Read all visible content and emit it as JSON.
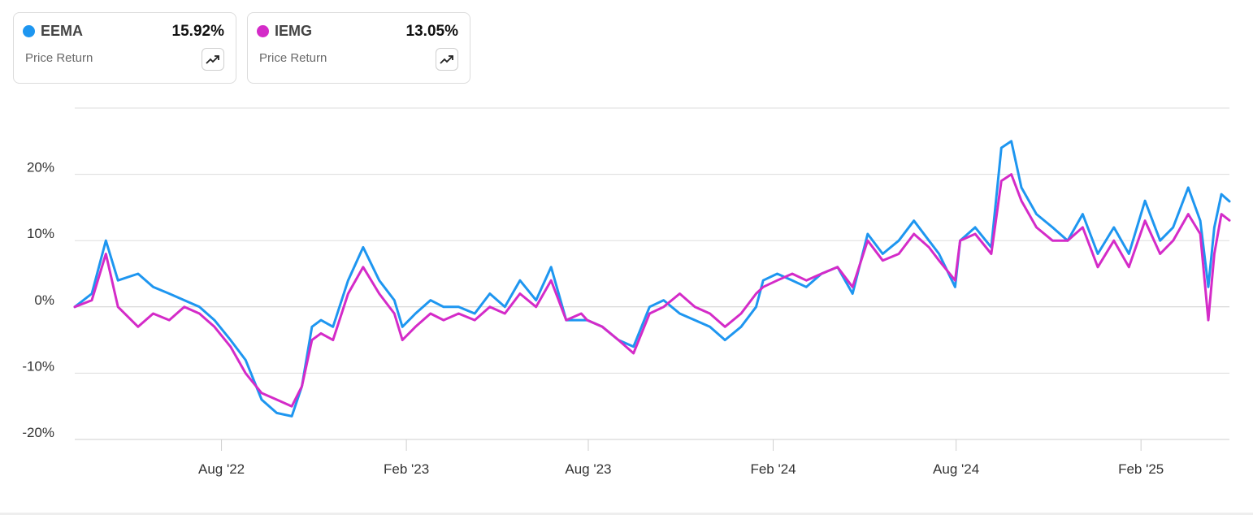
{
  "legend": [
    {
      "ticker": "EEMA",
      "value": "15.92%",
      "subtitle": "Price Return",
      "color": "#1e96f0",
      "icon": "trend-up-icon"
    },
    {
      "ticker": "IEMG",
      "value": "13.05%",
      "subtitle": "Price Return",
      "color": "#d42bc8",
      "icon": "trend-up-icon"
    }
  ],
  "chart_data": {
    "type": "line",
    "title": "",
    "xlabel": "",
    "ylabel": "",
    "x_ticks": [
      "Aug '22",
      "Feb '23",
      "Aug '23",
      "Feb '24",
      "Aug '24",
      "Feb '25"
    ],
    "y_ticks": [
      "20%",
      "10%",
      "0%",
      "-10%",
      "-20%"
    ],
    "y_tick_values": [
      20,
      10,
      0,
      -10,
      -20
    ],
    "ylim": [
      -20,
      30
    ],
    "xlim": [
      "2022-03-08",
      "2025-04-30"
    ],
    "grid": true,
    "legend": "top-left cards",
    "series": [
      {
        "name": "EEMA",
        "color": "#1e96f0",
        "x": [
          "2022-03-08",
          "2022-03-25",
          "2022-04-08",
          "2022-04-20",
          "2022-05-10",
          "2022-05-25",
          "2022-06-10",
          "2022-06-25",
          "2022-07-10",
          "2022-07-25",
          "2022-08-10",
          "2022-08-25",
          "2022-09-10",
          "2022-09-25",
          "2022-10-10",
          "2022-10-20",
          "2022-10-30",
          "2022-11-08",
          "2022-11-20",
          "2022-12-05",
          "2022-12-20",
          "2023-01-05",
          "2023-01-20",
          "2023-01-28",
          "2023-02-10",
          "2023-02-25",
          "2023-03-10",
          "2023-03-25",
          "2023-04-10",
          "2023-04-25",
          "2023-05-10",
          "2023-05-25",
          "2023-06-10",
          "2023-06-25",
          "2023-07-10",
          "2023-07-25",
          "2023-07-31",
          "2023-08-15",
          "2023-08-31",
          "2023-09-15",
          "2023-10-01",
          "2023-10-15",
          "2023-10-31",
          "2023-11-15",
          "2023-11-30",
          "2023-12-15",
          "2023-12-31",
          "2024-01-15",
          "2024-01-22",
          "2024-02-05",
          "2024-02-20",
          "2024-03-05",
          "2024-03-20",
          "2024-04-05",
          "2024-04-20",
          "2024-05-05",
          "2024-05-20",
          "2024-06-05",
          "2024-06-20",
          "2024-07-05",
          "2024-07-15",
          "2024-07-31",
          "2024-08-05",
          "2024-08-20",
          "2024-09-05",
          "2024-09-15",
          "2024-09-25",
          "2024-10-05",
          "2024-10-20",
          "2024-11-05",
          "2024-11-20",
          "2024-12-05",
          "2024-12-20",
          "2025-01-05",
          "2025-01-20",
          "2025-02-05",
          "2025-02-20",
          "2025-03-05",
          "2025-03-20",
          "2025-04-01",
          "2025-04-09",
          "2025-04-15",
          "2025-04-22",
          "2025-04-30"
        ],
        "values": [
          0,
          2,
          10,
          4,
          5,
          3,
          2,
          1,
          0,
          -2,
          -5,
          -8,
          -14,
          -16,
          -16.5,
          -12,
          -3,
          -2,
          -3,
          4,
          9,
          4,
          1,
          -3,
          -1,
          1,
          0,
          0,
          -1,
          2,
          0,
          4,
          1,
          6,
          -2,
          -2,
          -2,
          -3,
          -5,
          -6,
          0,
          1,
          -1,
          -2,
          -3,
          -5,
          -3,
          0,
          4,
          5,
          4,
          3,
          5,
          6,
          2,
          11,
          8,
          10,
          13,
          10,
          8,
          3,
          10,
          12,
          9,
          24,
          25,
          18,
          14,
          12,
          10,
          14,
          8,
          12,
          8,
          16,
          10,
          12,
          18,
          13,
          3,
          12,
          17,
          15.92
        ]
      },
      {
        "name": "IEMG",
        "color": "#d42bc8",
        "x": [
          "2022-03-08",
          "2022-03-25",
          "2022-04-08",
          "2022-04-20",
          "2022-05-10",
          "2022-05-25",
          "2022-06-10",
          "2022-06-25",
          "2022-07-10",
          "2022-07-25",
          "2022-08-10",
          "2022-08-25",
          "2022-09-10",
          "2022-09-25",
          "2022-10-10",
          "2022-10-20",
          "2022-10-30",
          "2022-11-08",
          "2022-11-20",
          "2022-12-05",
          "2022-12-20",
          "2023-01-05",
          "2023-01-20",
          "2023-01-28",
          "2023-02-10",
          "2023-02-25",
          "2023-03-10",
          "2023-03-25",
          "2023-04-10",
          "2023-04-25",
          "2023-05-10",
          "2023-05-25",
          "2023-06-10",
          "2023-06-25",
          "2023-07-10",
          "2023-07-25",
          "2023-07-31",
          "2023-08-15",
          "2023-08-31",
          "2023-09-15",
          "2023-10-01",
          "2023-10-15",
          "2023-10-31",
          "2023-11-15",
          "2023-11-30",
          "2023-12-15",
          "2023-12-31",
          "2024-01-15",
          "2024-01-22",
          "2024-02-05",
          "2024-02-20",
          "2024-03-05",
          "2024-03-20",
          "2024-04-05",
          "2024-04-20",
          "2024-05-05",
          "2024-05-20",
          "2024-06-05",
          "2024-06-20",
          "2024-07-05",
          "2024-07-15",
          "2024-07-31",
          "2024-08-05",
          "2024-08-20",
          "2024-09-05",
          "2024-09-15",
          "2024-09-25",
          "2024-10-05",
          "2024-10-20",
          "2024-11-05",
          "2024-11-20",
          "2024-12-05",
          "2024-12-20",
          "2025-01-05",
          "2025-01-20",
          "2025-02-05",
          "2025-02-20",
          "2025-03-05",
          "2025-03-20",
          "2025-04-01",
          "2025-04-09",
          "2025-04-15",
          "2025-04-22",
          "2025-04-30"
        ],
        "values": [
          0,
          1,
          8,
          0,
          -3,
          -1,
          -2,
          0,
          -1,
          -3,
          -6,
          -10,
          -13,
          -14,
          -15,
          -12,
          -5,
          -4,
          -5,
          2,
          6,
          2,
          -1,
          -5,
          -3,
          -1,
          -2,
          -1,
          -2,
          0,
          -1,
          2,
          0,
          4,
          -2,
          -1,
          -2,
          -3,
          -5,
          -7,
          -1,
          0,
          2,
          0,
          -1,
          -3,
          -1,
          2,
          3,
          4,
          5,
          4,
          5,
          6,
          3,
          10,
          7,
          8,
          11,
          9,
          7,
          4,
          10,
          11,
          8,
          19,
          20,
          16,
          12,
          10,
          10,
          12,
          6,
          10,
          6,
          13,
          8,
          10,
          14,
          11,
          -2,
          8,
          14,
          13.05
        ]
      }
    ]
  }
}
